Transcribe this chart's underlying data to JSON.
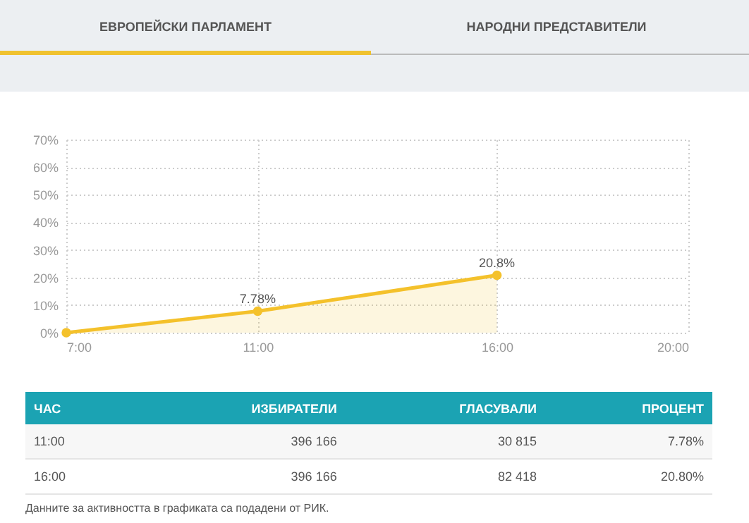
{
  "chart_data": {
    "type": "area",
    "x": [
      7,
      11,
      16
    ],
    "series": [
      {
        "color": "#f4c12b",
        "values": [
          0,
          7.78,
          20.8
        ],
        "value_labels": [
          null,
          "7.78%",
          "20.8%"
        ]
      }
    ],
    "xlim": [
      7,
      20
    ],
    "xticks": [
      {
        "value": 7,
        "label": "7:00"
      },
      {
        "value": 11,
        "label": "11:00"
      },
      {
        "value": 16,
        "label": "16:00"
      },
      {
        "value": 20,
        "label": "20:00"
      }
    ],
    "ylim": [
      0,
      70
    ],
    "yticks": [
      {
        "value": 0,
        "label": "0%"
      },
      {
        "value": 10,
        "label": "10%"
      },
      {
        "value": 20,
        "label": "20%"
      },
      {
        "value": 30,
        "label": "30%"
      },
      {
        "value": 40,
        "label": "40%"
      },
      {
        "value": 50,
        "label": "50%"
      },
      {
        "value": 60,
        "label": "60%"
      },
      {
        "value": 70,
        "label": "70%"
      }
    ],
    "grid": true,
    "marker": "circle",
    "annotations": [
      "ЕВРОПЕЙСКИ ПАРЛАМЕНТ",
      "НАРОДНИ ПРЕДСТАВИТЕЛИ",
      "ЧАС",
      "ИЗБИРАТЕЛИ",
      "ГЛАСУВАЛИ",
      "ПРОЦЕНТ",
      "11:00",
      "396 166",
      "30 815",
      "7.78%",
      "16:00",
      "396 166",
      "82 418",
      "20.80%",
      "Данните за активността в графиката са подадени от РИК."
    ]
  }
}
